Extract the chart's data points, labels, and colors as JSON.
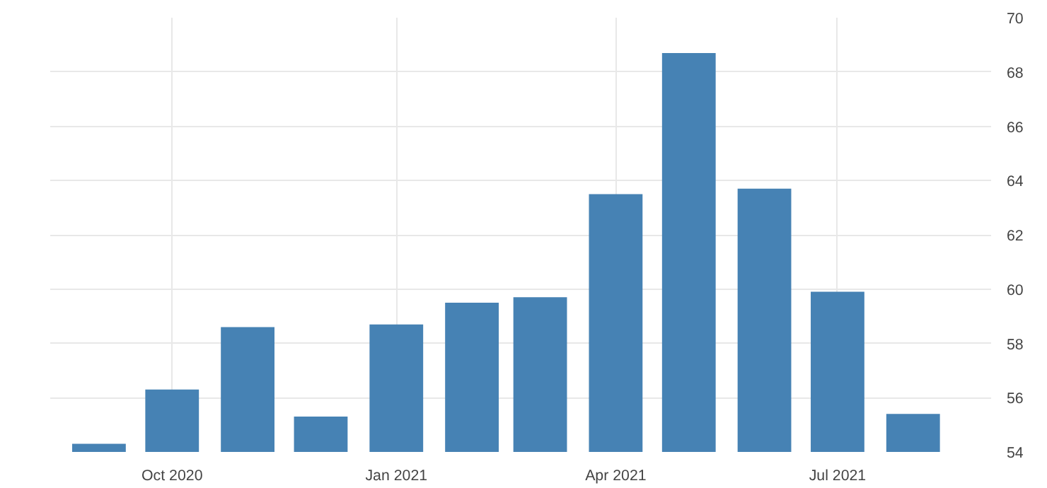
{
  "chart_data": {
    "type": "bar",
    "x": [
      "2020-09",
      "2020-10",
      "2020-11",
      "2020-12",
      "2021-01",
      "2021-02",
      "2021-03",
      "2021-04",
      "2021-05",
      "2021-06",
      "2021-07",
      "2021-08"
    ],
    "series": [
      {
        "color": "#4682b4",
        "values": [
          54.3,
          56.3,
          58.6,
          55.3,
          58.7,
          59.5,
          59.7,
          63.5,
          68.7,
          63.7,
          59.9,
          55.4
        ]
      }
    ],
    "xlim": [
      "2020-08-12",
      "2021-09-02"
    ],
    "xticks": [
      {
        "value": "2020-10",
        "label": "Oct 2020"
      },
      {
        "value": "2021-01",
        "label": "Jan 2021"
      },
      {
        "value": "2021-04",
        "label": "Apr 2021"
      },
      {
        "value": "2021-07",
        "label": "Jul 2021"
      }
    ],
    "ylim": [
      54,
      70
    ],
    "yticks": [
      54,
      56,
      58,
      60,
      62,
      64,
      66,
      68,
      70
    ],
    "grid": true
  }
}
